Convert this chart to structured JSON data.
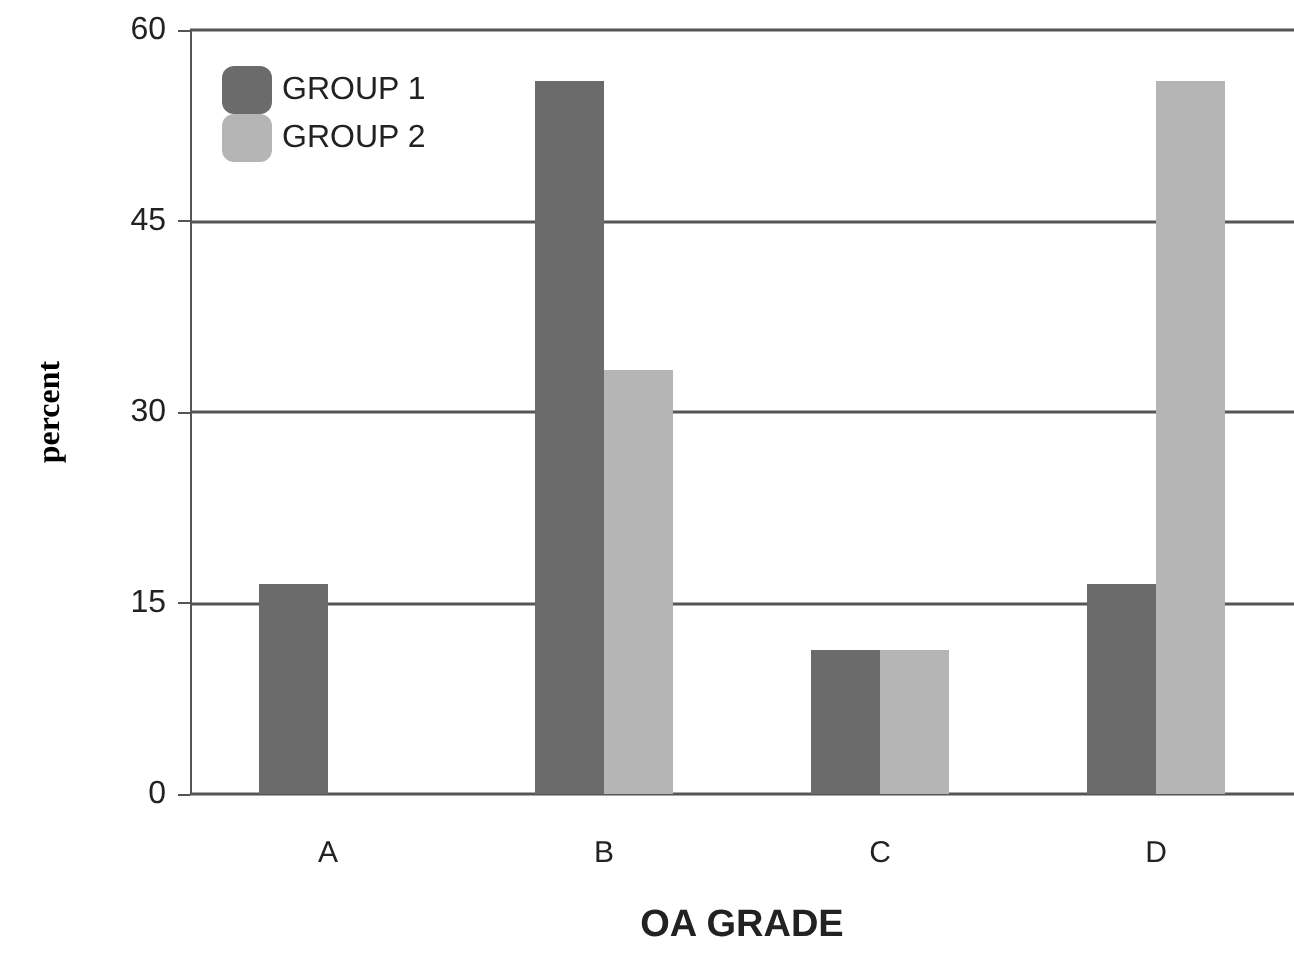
{
  "chart_data": {
    "type": "bar",
    "xlabel": "OA GRADE",
    "ylabel": "percent",
    "categories": [
      "A",
      "B",
      "C",
      "D"
    ],
    "series": [
      {
        "name": "GROUP 1",
        "color": "#6b6b6b",
        "values": [
          16.5,
          56,
          11.3,
          16.5
        ]
      },
      {
        "name": "GROUP 2",
        "color": "#b5b5b5",
        "values": [
          0,
          33.3,
          11.3,
          56
        ]
      }
    ],
    "ylim": [
      0,
      60
    ],
    "yticks": [
      0,
      15,
      30,
      45,
      60
    ],
    "grid": "y",
    "legend": "top left"
  }
}
